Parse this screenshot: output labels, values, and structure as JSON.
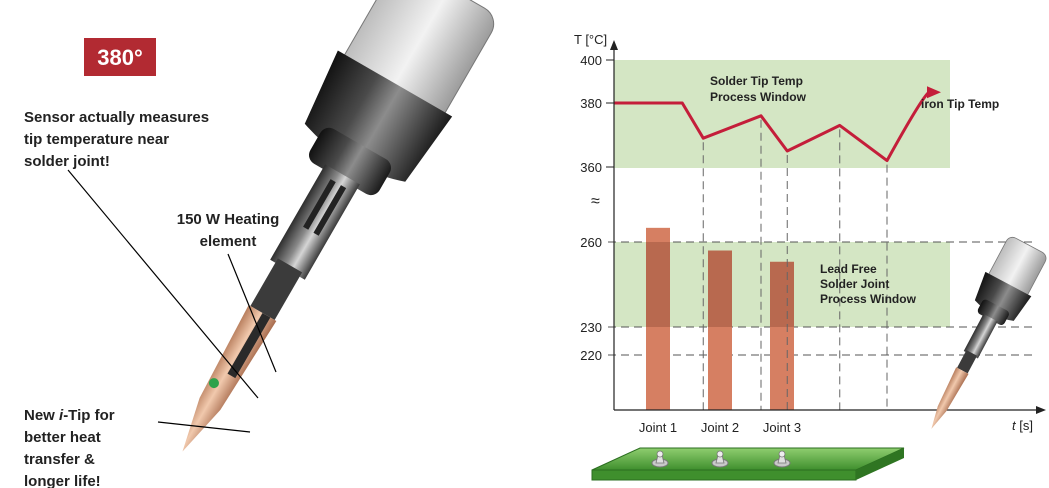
{
  "badge": {
    "text": "380°",
    "color": "#b22a32"
  },
  "callouts": {
    "sensor": [
      "Sensor actually measures",
      "tip temperature near",
      "solder joint!"
    ],
    "heating": [
      "150 W Heating",
      "element"
    ],
    "tip": {
      "prefix": "New ",
      "italic": "i",
      "line1_rest": "-Tip for",
      "lines": [
        "better heat",
        "transfer &",
        "longer life!"
      ]
    }
  },
  "chart": {
    "y_axis_label": "T [°C]",
    "x_axis_label": "t [s]",
    "x_axis_label_italic": "t",
    "x_axis_label_rest": " [s]",
    "upper_ticks": [
      400,
      380,
      360
    ],
    "lower_ticks": [
      260,
      230,
      220
    ],
    "break_symbol": "≈",
    "tip_window": {
      "label": [
        "Solder Tip Temp",
        "Process Window"
      ],
      "range": [
        360,
        400
      ]
    },
    "joint_window": {
      "label": [
        "Lead Free",
        "Solder Joint",
        "Process Window"
      ],
      "range": [
        230,
        260
      ]
    },
    "tip_curve_label": "iron Tip Temp",
    "colors": {
      "window": "#d4e6c4",
      "curve": "#c41e3a",
      "bar": "#d67f62",
      "bar_dark": "#b8694f"
    }
  },
  "chart_data": {
    "type": "bar",
    "categories": [
      "Joint 1",
      "Joint 2",
      "Joint 3"
    ],
    "values": [
      265,
      257,
      253
    ],
    "ylabel": "T [°C]",
    "xlabel": "t [s]",
    "series_line": {
      "name": "iron Tip Temp",
      "points_t": [
        0,
        1.3,
        1.7,
        2.8,
        3.3,
        4.3,
        5.2,
        6.0
      ],
      "points_T": [
        380,
        380,
        369,
        376,
        365,
        373,
        362,
        385
      ]
    }
  }
}
